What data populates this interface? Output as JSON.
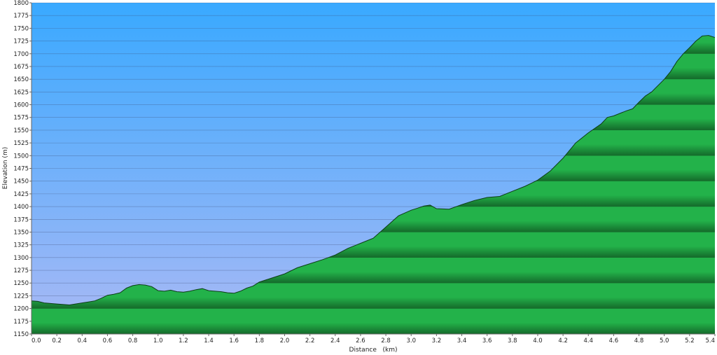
{
  "chart_data": {
    "type": "area",
    "xlabel": "Distance   (km)",
    "ylabel": "Elevation (m)",
    "xlim": [
      0,
      5.4
    ],
    "ylim": [
      1150,
      1800
    ],
    "xticks": [
      "0.0",
      "0.2",
      "0.4",
      "0.6",
      "0.8",
      "1.0",
      "1.2",
      "1.4",
      "1.6",
      "1.8",
      "2.0",
      "2.2",
      "2.4",
      "2.6",
      "2.8",
      "3.0",
      "3.2",
      "3.4",
      "3.6",
      "3.8",
      "4.0",
      "4.2",
      "4.4",
      "4.6",
      "4.8",
      "5.0",
      "5.2",
      "5.4"
    ],
    "yticks": [
      "1150",
      "1175",
      "1200",
      "1225",
      "1250",
      "1275",
      "1300",
      "1325",
      "1350",
      "1375",
      "1400",
      "1425",
      "1450",
      "1475",
      "1500",
      "1525",
      "1550",
      "1575",
      "1600",
      "1625",
      "1650",
      "1675",
      "1700",
      "1725",
      "1750",
      "1775",
      "1800"
    ],
    "grid": true,
    "colors": {
      "sky_top": "#39a9ff",
      "sky_bottom": "#aab9f5",
      "fill_light": "#23b24a",
      "fill_dark": "#14692a",
      "outline": "#0e3e16"
    },
    "x": [
      0.0,
      0.05,
      0.1,
      0.2,
      0.3,
      0.4,
      0.45,
      0.5,
      0.55,
      0.6,
      0.65,
      0.7,
      0.75,
      0.8,
      0.85,
      0.9,
      0.95,
      1.0,
      1.05,
      1.1,
      1.15,
      1.2,
      1.25,
      1.3,
      1.35,
      1.4,
      1.45,
      1.5,
      1.55,
      1.6,
      1.65,
      1.7,
      1.75,
      1.8,
      1.9,
      2.0,
      2.1,
      2.2,
      2.3,
      2.4,
      2.5,
      2.6,
      2.7,
      2.8,
      2.9,
      3.0,
      3.05,
      3.1,
      3.15,
      3.2,
      3.3,
      3.4,
      3.5,
      3.6,
      3.7,
      3.8,
      3.9,
      4.0,
      4.1,
      4.2,
      4.3,
      4.4,
      4.5,
      4.55,
      4.6,
      4.7,
      4.75,
      4.8,
      4.85,
      4.9,
      5.0,
      5.05,
      5.1,
      5.15,
      5.2,
      5.25,
      5.3,
      5.35,
      5.4
    ],
    "y": [
      1215,
      1214,
      1211,
      1209,
      1207,
      1211,
      1213,
      1215,
      1220,
      1226,
      1228,
      1231,
      1240,
      1245,
      1247,
      1246,
      1243,
      1235,
      1234,
      1236,
      1233,
      1232,
      1234,
      1237,
      1239,
      1235,
      1234,
      1233,
      1231,
      1230,
      1234,
      1240,
      1244,
      1252,
      1260,
      1268,
      1280,
      1288,
      1296,
      1305,
      1318,
      1328,
      1338,
      1360,
      1382,
      1393,
      1397,
      1401,
      1403,
      1396,
      1395,
      1404,
      1412,
      1418,
      1420,
      1430,
      1440,
      1452,
      1470,
      1495,
      1525,
      1545,
      1562,
      1575,
      1578,
      1588,
      1592,
      1605,
      1617,
      1625,
      1650,
      1665,
      1685,
      1700,
      1712,
      1725,
      1735,
      1736,
      1732
    ]
  }
}
